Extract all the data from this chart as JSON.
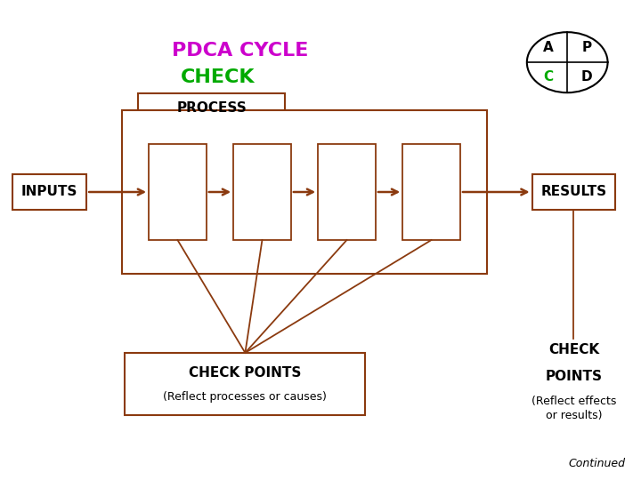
{
  "title_pdca": "PDCA CYCLE",
  "title_check": "CHECK",
  "pdca_color": "#CC00CC",
  "check_color": "#00AA00",
  "box_color": "#8B3A0F",
  "arrow_color": "#8B3A0F",
  "bg_color": "#FFFFFF",
  "text_color": "#000000",
  "process_label": "PROCESS",
  "inputs_label": "INPUTS",
  "results_label": "RESULTS",
  "check_points_left": "CHECK POINTS",
  "check_points_left_sub": "(Reflect processes or causes)",
  "check_points_right_line1": "CHECK",
  "check_points_right_line2": "POINTS",
  "check_points_right_sub": "(Reflect effects\nor results)",
  "continued_label": "Continued",
  "circle_letter_color": "#000000",
  "circle_green_color": "#00AA00",
  "fig_width": 7.2,
  "fig_height": 5.4,
  "dpi": 100
}
